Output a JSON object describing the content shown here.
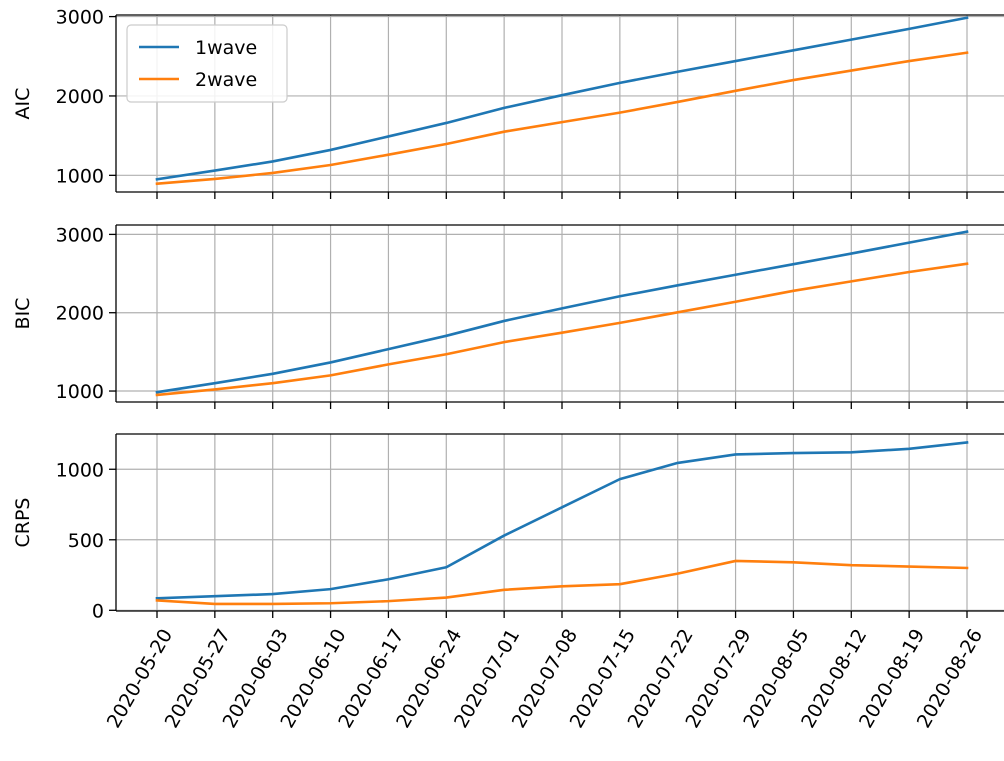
{
  "chart_data": {
    "type": "line",
    "x": [
      "2020-05-20",
      "2020-05-27",
      "2020-06-03",
      "2020-06-10",
      "2020-06-17",
      "2020-06-24",
      "2020-07-01",
      "2020-07-08",
      "2020-07-15",
      "2020-07-22",
      "2020-07-29",
      "2020-08-05",
      "2020-08-12",
      "2020-08-19",
      "2020-08-26"
    ],
    "series_colors": {
      "1wave": "#1f77b4",
      "2wave": "#ff7f0e"
    },
    "legend": {
      "entries": [
        "1wave",
        "2wave"
      ],
      "position": "upper-left",
      "panel": 0
    },
    "grid": true,
    "panels": [
      {
        "ylabel": "AIC",
        "ylim": [
          790,
          3020
        ],
        "yticks": [
          1000,
          2000,
          3000
        ],
        "ytick_labels": [
          "1000",
          "2000",
          "3000"
        ],
        "series": [
          {
            "name": "1wave",
            "values": [
              950,
              1060,
              1175,
              1320,
              1490,
              1660,
              1850,
              2010,
              2165,
              2305,
              2440,
              2575,
              2710,
              2845,
              2985
            ]
          },
          {
            "name": "2wave",
            "values": [
              895,
              955,
              1030,
              1130,
              1260,
              1395,
              1550,
              1670,
              1790,
              1925,
              2065,
              2200,
              2320,
              2440,
              2545
            ]
          }
        ]
      },
      {
        "ylabel": "BIC",
        "ylim": [
          860,
          3120
        ],
        "yticks": [
          1000,
          2000,
          3000
        ],
        "ytick_labels": [
          "1000",
          "2000",
          "3000"
        ],
        "series": [
          {
            "name": "1wave",
            "values": [
              985,
              1100,
              1220,
              1365,
              1535,
              1705,
              1895,
              2055,
              2210,
              2350,
              2485,
              2620,
              2755,
              2895,
              3035
            ]
          },
          {
            "name": "2wave",
            "values": [
              950,
              1020,
              1100,
              1200,
              1340,
              1470,
              1625,
              1745,
              1870,
              2005,
              2140,
              2280,
              2400,
              2520,
              2625
            ]
          }
        ]
      },
      {
        "ylabel": "CRPS",
        "ylim": [
          -5,
          1250
        ],
        "yticks": [
          0,
          500,
          1000
        ],
        "ytick_labels": [
          "0",
          "500",
          "1000"
        ],
        "series": [
          {
            "name": "1wave",
            "values": [
              85,
              100,
              115,
              150,
              220,
              305,
              530,
              730,
              930,
              1045,
              1105,
              1115,
              1120,
              1145,
              1190
            ]
          },
          {
            "name": "2wave",
            "values": [
              70,
              45,
              45,
              50,
              65,
              90,
              145,
              170,
              185,
              260,
              350,
              340,
              320,
              310,
              300
            ]
          }
        ]
      }
    ]
  }
}
